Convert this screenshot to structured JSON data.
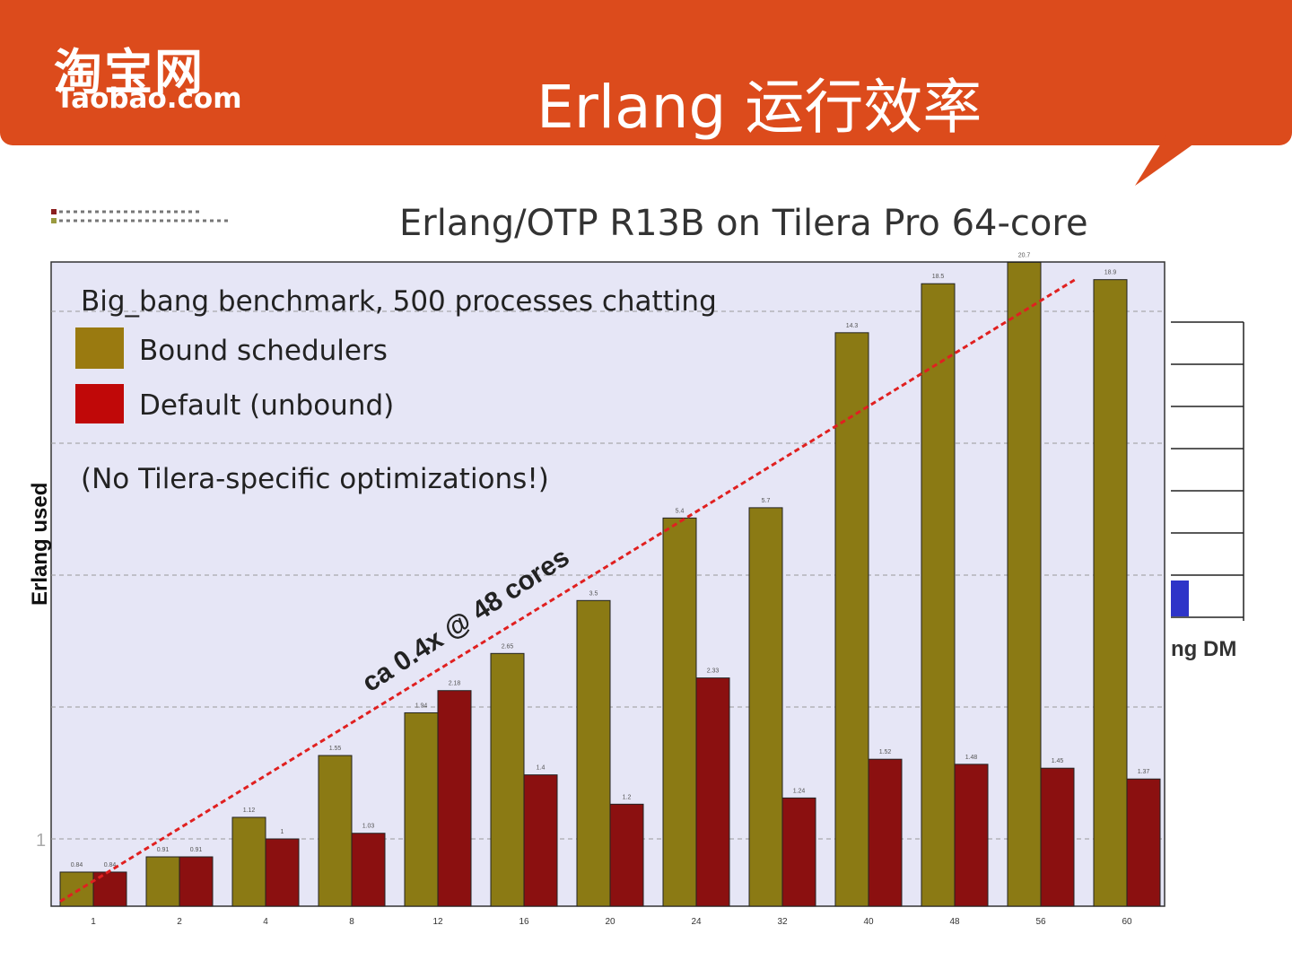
{
  "header": {
    "logo_cn": "淘宝网",
    "logo_en": "Taobao.com",
    "title": "Erlang 运行效率",
    "color": "#dc4b1c"
  },
  "chart_data": {
    "type": "bar",
    "title": "Erlang/OTP R13B on Tilera Pro 64-core",
    "ylabel": "Erlang used",
    "xlabel": "",
    "yscale": "log2",
    "ylim": [
      0.7,
      20.7
    ],
    "yticks": [
      1,
      2,
      4,
      8,
      16
    ],
    "ytick_labels_visible": [
      "1"
    ],
    "grid": true,
    "legend_position": "top-left",
    "legend_heading": "Big_bang benchmark, 500 processes chatting",
    "note": "(No Tilera-specific optimizations!)",
    "annotation": "ca 0.4x @ 48 cores",
    "categories": [
      "1",
      "2",
      "4",
      "8",
      "12",
      "16",
      "20",
      "24",
      "32",
      "40",
      "48",
      "56",
      "60"
    ],
    "series": [
      {
        "name": "Bound schedulers",
        "color": "#8b7a14",
        "values": [
          0.84,
          0.91,
          1.12,
          1.55,
          1.94,
          2.65,
          3.5,
          5.4,
          5.7,
          14.3,
          18.5,
          20.7,
          18.9
        ]
      },
      {
        "name": "Default (unbound)",
        "color": "#8b1010",
        "values": [
          0.84,
          0.91,
          1.0,
          1.03,
          2.18,
          1.4,
          1.2,
          2.33,
          1.24,
          1.52,
          1.48,
          1.45,
          1.37
        ]
      }
    ],
    "trend_line": {
      "color": "#e02020",
      "from": [
        1,
        0.72
      ],
      "to": [
        60,
        19
      ]
    }
  },
  "side_chart": {
    "label": "ng DM",
    "bar_color": "#2e34c8"
  }
}
